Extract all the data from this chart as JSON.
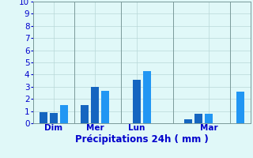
{
  "bars": [
    {
      "x": 1,
      "height": 0.9,
      "color": "#1565c0"
    },
    {
      "x": 2,
      "height": 0.85,
      "color": "#1565c0"
    },
    {
      "x": 3,
      "height": 1.5,
      "color": "#2196f3"
    },
    {
      "x": 5,
      "height": 1.5,
      "color": "#1565c0"
    },
    {
      "x": 6,
      "height": 3.0,
      "color": "#1565c0"
    },
    {
      "x": 7,
      "height": 2.65,
      "color": "#2196f3"
    },
    {
      "x": 10,
      "height": 3.55,
      "color": "#1565c0"
    },
    {
      "x": 11,
      "height": 4.3,
      "color": "#2196f3"
    },
    {
      "x": 15,
      "height": 0.3,
      "color": "#1565c0"
    },
    {
      "x": 16,
      "height": 0.75,
      "color": "#1565c0"
    },
    {
      "x": 17,
      "height": 0.8,
      "color": "#2196f3"
    },
    {
      "x": 20,
      "height": 2.6,
      "color": "#2196f3"
    }
  ],
  "x_ticks_pos": [
    2,
    6,
    10,
    17
  ],
  "x_tick_labels": [
    "Dim",
    "Mer",
    "Lun",
    "Mar"
  ],
  "x_vlines": [
    0.0,
    4.0,
    8.5,
    13.5,
    19.0
  ],
  "ylim": [
    0,
    10
  ],
  "yticks": [
    0,
    1,
    2,
    3,
    4,
    5,
    6,
    7,
    8,
    9,
    10
  ],
  "xlabel": "Précipitations 24h ( mm )",
  "xlim": [
    0,
    21
  ],
  "bg_color": "#e0f8f8",
  "grid_color": "#b8d8d8",
  "bar_width": 0.75,
  "xlabel_fontsize": 8.5,
  "tick_fontsize": 7.5,
  "xlabel_color": "#0000cc",
  "tick_color": "#0000cc",
  "vline_color": "#7a9a9a"
}
